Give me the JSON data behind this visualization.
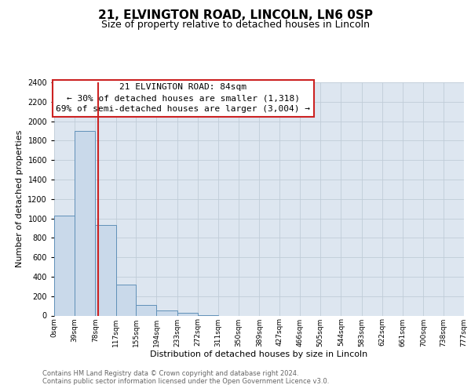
{
  "title1": "21, ELVINGTON ROAD, LINCOLN, LN6 0SP",
  "title2": "Size of property relative to detached houses in Lincoln",
  "xlabel": "Distribution of detached houses by size in Lincoln",
  "ylabel": "Number of detached properties",
  "annotation_line0": "21 ELVINGTON ROAD: 84sqm",
  "annotation_line1": "← 30% of detached houses are smaller (1,318)",
  "annotation_line2": "69% of semi-detached houses are larger (3,004) →",
  "property_size": 84,
  "bin_edges": [
    0,
    39,
    78,
    117,
    155,
    194,
    233,
    272,
    311,
    350,
    389,
    427,
    466,
    505,
    544,
    583,
    622,
    661,
    700,
    738,
    777
  ],
  "bar_heights": [
    1025,
    1900,
    930,
    320,
    110,
    50,
    25,
    5,
    0,
    0,
    0,
    0,
    0,
    0,
    0,
    0,
    0,
    0,
    0,
    0
  ],
  "bar_color": "#c9d9ea",
  "bar_edge_color": "#6090b8",
  "red_line_color": "#cc2222",
  "ylim_max": 2400,
  "ytick_step": 200,
  "grid_color": "#c0ccd8",
  "plot_bg_color": "#dde6f0",
  "fig_bg_color": "#ffffff",
  "footer1": "Contains HM Land Registry data © Crown copyright and database right 2024.",
  "footer2": "Contains public sector information licensed under the Open Government Licence v3.0.",
  "title1_fontsize": 11,
  "title2_fontsize": 9,
  "axis_label_fontsize": 8,
  "tick_fontsize": 7,
  "annotation_fontsize": 8,
  "footer_fontsize": 6
}
